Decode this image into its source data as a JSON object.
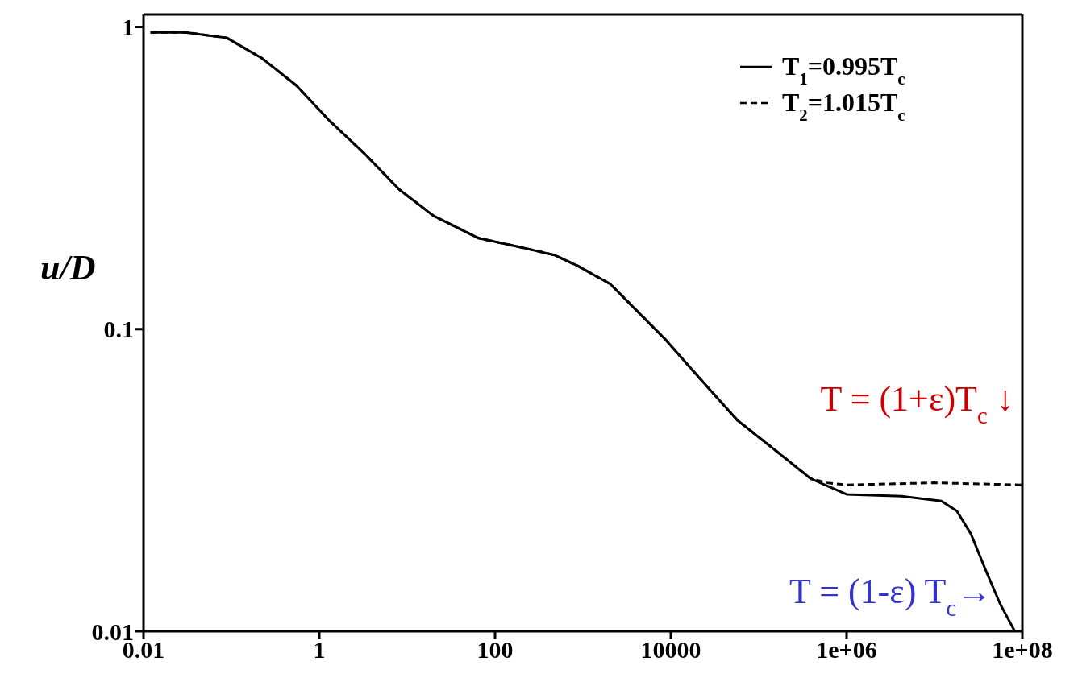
{
  "chart_data": {
    "type": "line",
    "xlabel": null,
    "ylabel": "u/D",
    "log": "xy",
    "xlim": [
      0.01,
      100000000
    ],
    "ylim": [
      0.01,
      1.1
    ],
    "xticks": [
      0.01,
      1,
      100,
      10000,
      {
        "value": 1000000,
        "label": "1e+06"
      },
      {
        "value": 100000000,
        "label": "1e+08"
      }
    ],
    "yticks": [
      0.01,
      0.1,
      1
    ],
    "legend": "top right",
    "grid": false,
    "marker": "none",
    "series": [
      {
        "name": "T$_{1}$=0.995T$_{c}$",
        "color": "#000000",
        "line_style": "solid",
        "x": [
          0.012,
          0.03,
          0.089,
          0.22,
          0.55,
          1.3,
          3.3,
          8.1,
          20,
          65,
          190,
          470,
          870,
          2050,
          8500,
          22000,
          57000,
          150000,
          390000,
          1000000,
          4200000,
          12000000,
          18000000,
          26000000,
          38000000,
          56000000,
          82000000
        ],
        "values": [
          0.96,
          0.96,
          0.92,
          0.79,
          0.64,
          0.49,
          0.38,
          0.29,
          0.237,
          0.2,
          0.187,
          0.176,
          0.162,
          0.141,
          0.093,
          0.068,
          0.05,
          0.04,
          0.032,
          0.0284,
          0.028,
          0.027,
          0.025,
          0.021,
          0.016,
          0.0123,
          0.01
        ]
      },
      {
        "name": "T$_{2}$=1.015T$_{c}$",
        "color": "#000000",
        "line_style": "dashed",
        "x": [
          0.012,
          0.03,
          0.089,
          0.22,
          0.55,
          1.3,
          3.3,
          8.1,
          20,
          65,
          190,
          470,
          870,
          2050,
          8500,
          22000,
          57000,
          150000,
          390000,
          600000,
          1000000,
          10000000,
          100000000
        ],
        "values": [
          0.96,
          0.96,
          0.92,
          0.79,
          0.64,
          0.49,
          0.38,
          0.29,
          0.237,
          0.2,
          0.187,
          0.176,
          0.162,
          0.141,
          0.093,
          0.068,
          0.05,
          0.04,
          0.032,
          0.031,
          0.0305,
          0.031,
          0.0305
        ]
      }
    ],
    "annotations": [
      {
        "text": "T = (1+ε)T$_{c}$ ↓",
        "x": 12000000,
        "y": 0.031
      },
      {
        "text": "T = (1-ε) T$_{c}$→",
        "x": 45000000,
        "y": 0.0135
      }
    ]
  }
}
